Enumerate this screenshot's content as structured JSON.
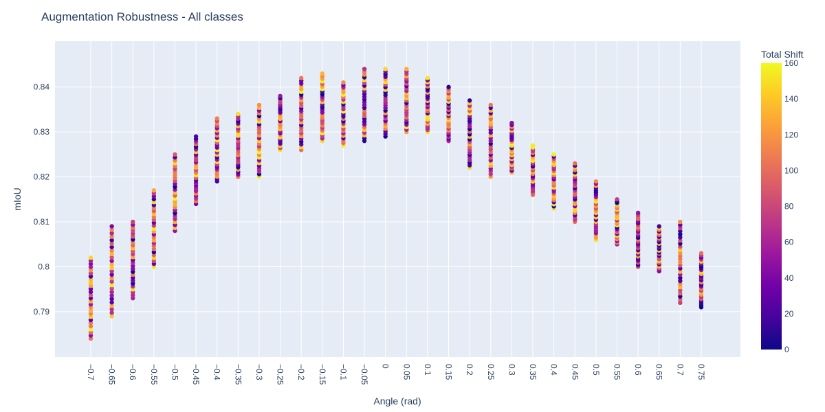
{
  "chart_data": {
    "type": "scatter",
    "title": "Augmentation Robustness - All classes",
    "xlabel": "Angle (rad)",
    "ylabel": "mIoU",
    "x_categories": [
      "-0.7",
      "-0.65",
      "-0.6",
      "-0.55",
      "-0.5",
      "-0.45",
      "-0.4",
      "-0.35",
      "-0.3",
      "-0.25",
      "-0.2",
      "-0.15",
      "-0.1",
      "-0.05",
      "0",
      "0.05",
      "0.1",
      "0.15",
      "0.2",
      "0.25",
      "0.3",
      "0.35",
      "0.4",
      "0.45",
      "0.5",
      "0.55",
      "0.6",
      "0.65",
      "0.7",
      "0.75"
    ],
    "x_tick_labels": [
      "−0.7",
      "−0.65",
      "−0.6",
      "−0.55",
      "−0.5",
      "−0.45",
      "−0.4",
      "−0.35",
      "−0.3",
      "−0.25",
      "−0.2",
      "−0.15",
      "−0.1",
      "−0.05",
      "0",
      "0.05",
      "0.1",
      "0.15",
      "0.2",
      "0.25",
      "0.3",
      "0.35",
      "0.4",
      "0.45",
      "0.5",
      "0.55",
      "0.6",
      "0.65",
      "0.7",
      "0.75"
    ],
    "ylim": [
      0.7799,
      0.8502
    ],
    "y_ticks": [
      0.79,
      0.8,
      0.81,
      0.82,
      0.83,
      0.84
    ],
    "y_tick_labels": [
      "0.79",
      "0.8",
      "0.81",
      "0.82",
      "0.83",
      "0.84"
    ],
    "column_ranges": [
      [
        0.784,
        0.802
      ],
      [
        0.789,
        0.809
      ],
      [
        0.793,
        0.81
      ],
      [
        0.8,
        0.817
      ],
      [
        0.808,
        0.825
      ],
      [
        0.814,
        0.829
      ],
      [
        0.819,
        0.833
      ],
      [
        0.82,
        0.834
      ],
      [
        0.82,
        0.836
      ],
      [
        0.826,
        0.838
      ],
      [
        0.826,
        0.842
      ],
      [
        0.828,
        0.843
      ],
      [
        0.827,
        0.841
      ],
      [
        0.828,
        0.844
      ],
      [
        0.829,
        0.844
      ],
      [
        0.83,
        0.844
      ],
      [
        0.83,
        0.842
      ],
      [
        0.828,
        0.84
      ],
      [
        0.822,
        0.837
      ],
      [
        0.82,
        0.836
      ],
      [
        0.821,
        0.832
      ],
      [
        0.816,
        0.827
      ],
      [
        0.813,
        0.825
      ],
      [
        0.81,
        0.823
      ],
      [
        0.806,
        0.819
      ],
      [
        0.805,
        0.815
      ],
      [
        0.8,
        0.812
      ],
      [
        0.799,
        0.809
      ],
      [
        0.792,
        0.81
      ],
      [
        0.791,
        0.803
      ]
    ],
    "points_per_column": 27,
    "color_variable": "Total Shift",
    "color_range": [
      0,
      160
    ],
    "colorbar_ticks": [
      0,
      20,
      40,
      60,
      80,
      100,
      120,
      140,
      160
    ],
    "colorscale": [
      "#0d0887",
      "#46039f",
      "#7201a8",
      "#9c179e",
      "#bd3786",
      "#d8576b",
      "#ed7953",
      "#fb9f3a",
      "#fdca26",
      "#f0f921"
    ],
    "plot_background": "#e5ecf6",
    "grid": true
  }
}
